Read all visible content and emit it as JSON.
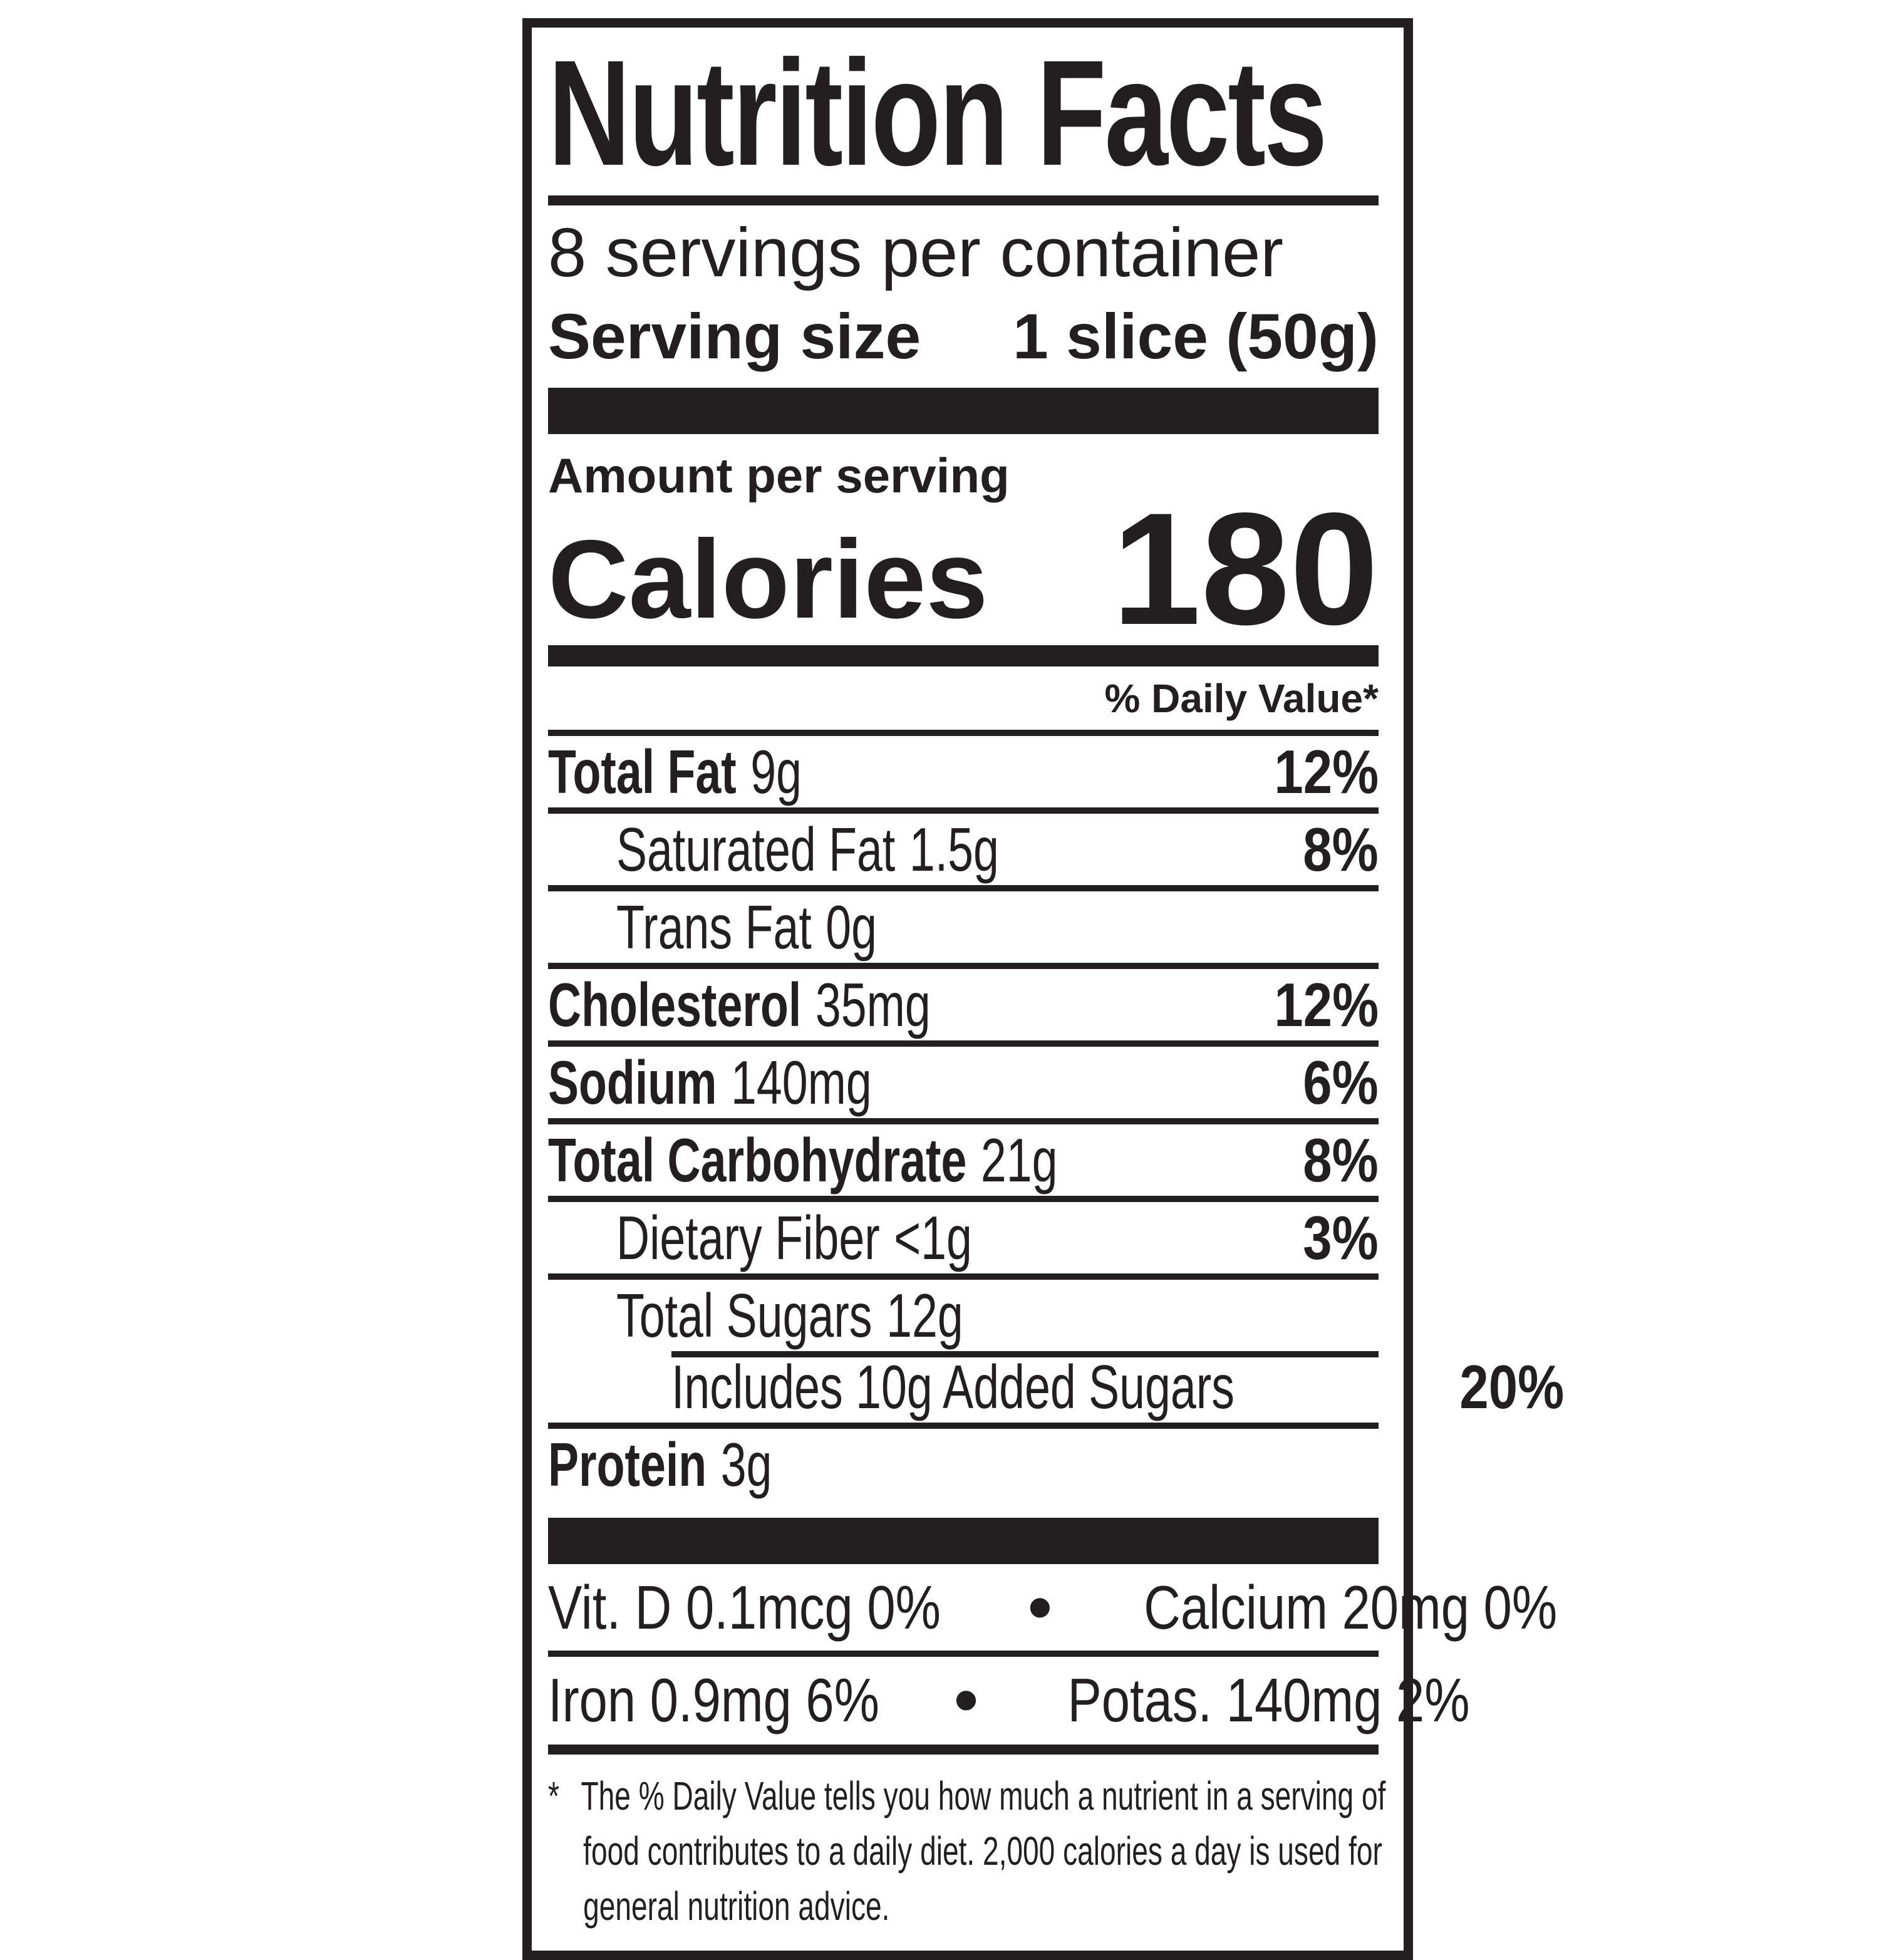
{
  "label": {
    "title": "Nutrition Facts",
    "servings_per_container": "8 servings per container",
    "serving_size_label": "Serving size",
    "serving_size_value": "1 slice (50g)",
    "amount_per_serving": "Amount per serving",
    "calories_label": "Calories",
    "calories_value": "180",
    "daily_value_header": "% Daily Value*",
    "rows": [
      {
        "name": "Total Fat",
        "amount": "9g",
        "dv": "12%"
      },
      {
        "name": "Saturated Fat",
        "amount": "1.5g",
        "dv": "8%"
      },
      {
        "name": "Trans Fat",
        "amount": "0g",
        "dv": ""
      },
      {
        "name": "Cholesterol",
        "amount": "35mg",
        "dv": "12%"
      },
      {
        "name": "Sodium",
        "amount": "140mg",
        "dv": "6%"
      },
      {
        "name": "Total Carbohydrate",
        "amount": "21g",
        "dv": "8%"
      },
      {
        "name": "Dietary Fiber",
        "amount": "<1g",
        "dv": "3%"
      },
      {
        "name": "Total Sugars",
        "amount": "12g",
        "dv": ""
      },
      {
        "name": "Includes 10g Added Sugars",
        "amount": "",
        "dv": "20%"
      },
      {
        "name": "Protein",
        "amount": "3g",
        "dv": ""
      }
    ],
    "micronutrients": [
      {
        "left": "Vit. D 0.1mcg 0%",
        "right": "Calcium 20mg 0%"
      },
      {
        "left": "Iron 0.9mg 6%",
        "right": "Potas. 140mg 2%"
      }
    ],
    "bullet_icon": "•",
    "footnote_marker": "*",
    "footnote": "The % Daily Value tells you how much a nutrient in a serving of food contributes to a daily diet. 2,000 calories a day is used for general nutrition advice.",
    "colors": {
      "ink": "#231f20",
      "background": "#ffffff"
    }
  }
}
